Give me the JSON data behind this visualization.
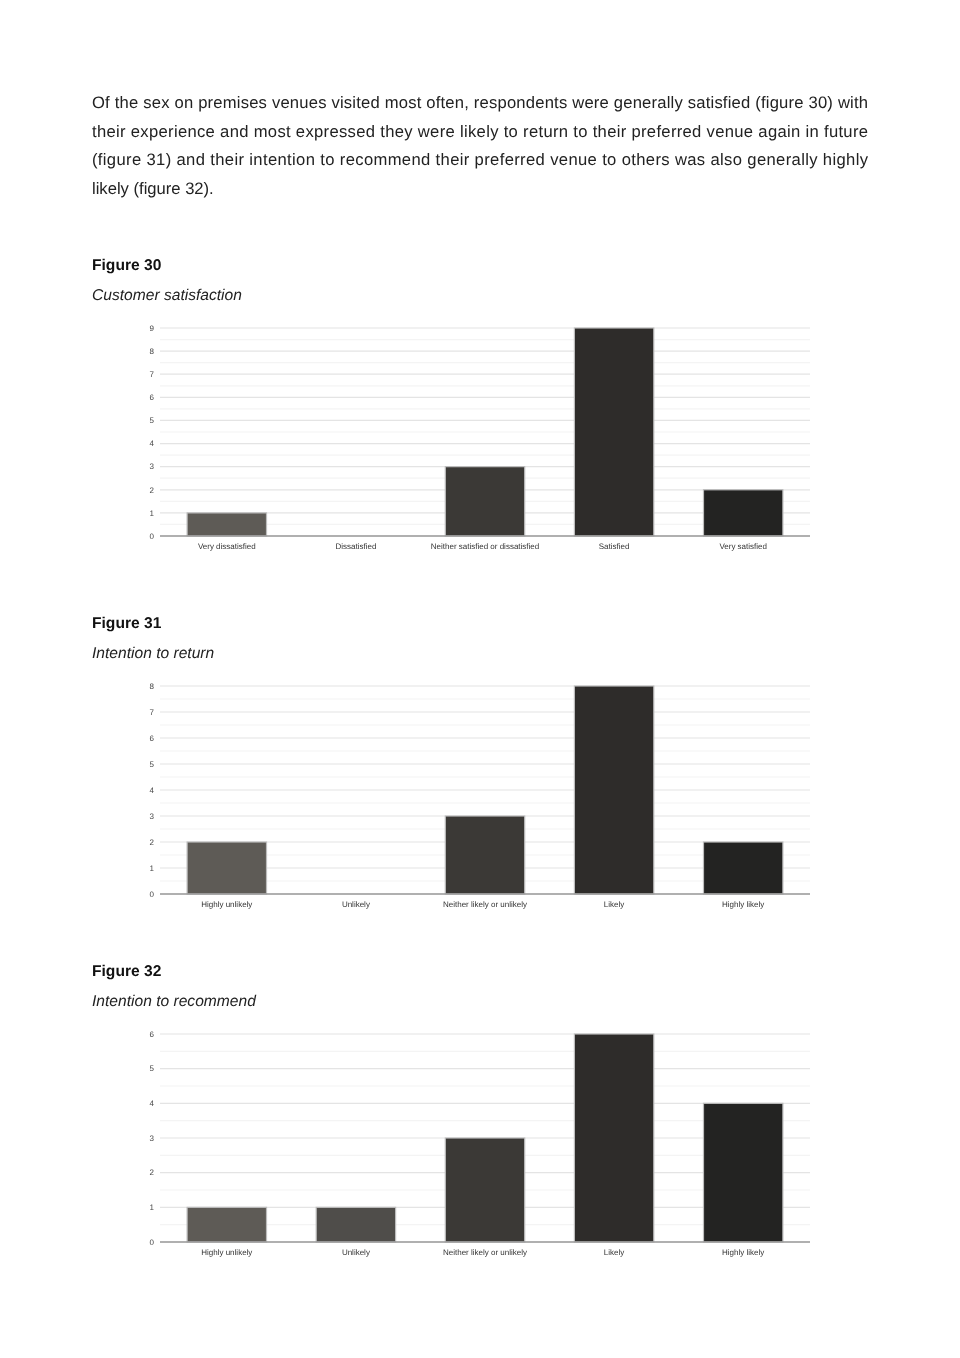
{
  "chart_data": [
    {
      "type": "bar",
      "title": "Figure 30",
      "subtitle": "Customer satisfaction",
      "annotations": [
        "Of the sex on premises venues visited most often, respondents were generally satisfied (figure 30) with their experience and most expressed they were likely to return to their preferred venue again in future (figure 31) and their intention to recommend their preferred venue to others was also generally highly likely (figure 32)."
      ],
      "categories": [
        "Very dissatisfied",
        "Dissatisfied",
        "Neither satisfied or dissatisfied",
        "Satisfied",
        "Very satisfied"
      ],
      "values": [
        1,
        0,
        3,
        9,
        2
      ],
      "colors": [
        "#5e5b56",
        "#4f4d4a",
        "#3b3936",
        "#2e2c2a",
        "#232322"
      ],
      "ylim": [
        0,
        9
      ],
      "yticks": [
        0,
        {
          "value": 0.5,
          "label": null
        },
        1,
        {
          "value": 1.5,
          "label": null
        },
        2,
        {
          "value": 2.5,
          "label": null
        },
        3,
        {
          "value": 3.5,
          "label": null
        },
        4,
        {
          "value": 4.5,
          "label": null
        },
        5,
        {
          "value": 5.5,
          "label": null
        },
        6,
        {
          "value": 6.5,
          "label": null
        },
        7,
        {
          "value": 7.5,
          "label": null
        },
        8,
        {
          "value": 8.5,
          "label": null
        },
        9
      ],
      "grid": "y"
    },
    {
      "type": "bar",
      "title": "Figure 31",
      "subtitle": "Intention to return",
      "categories": [
        "Highly unlikely",
        "Unlikely",
        "Neither likely or unlikely",
        "Likely",
        "Highly likely"
      ],
      "values": [
        2,
        0,
        3,
        8,
        2
      ],
      "colors": [
        "#5e5b56",
        "#4f4d4a",
        "#3b3936",
        "#2e2c2a",
        "#232322"
      ],
      "ylim": [
        0,
        8
      ],
      "yticks": [
        0,
        {
          "value": 0.5,
          "label": null
        },
        1,
        {
          "value": 1.5,
          "label": null
        },
        2,
        {
          "value": 2.5,
          "label": null
        },
        3,
        {
          "value": 3.5,
          "label": null
        },
        4,
        {
          "value": 4.5,
          "label": null
        },
        5,
        {
          "value": 5.5,
          "label": null
        },
        6,
        {
          "value": 6.5,
          "label": null
        },
        7,
        {
          "value": 7.5,
          "label": null
        },
        8
      ],
      "grid": "y"
    },
    {
      "type": "bar",
      "title": "Figure 32",
      "subtitle": "Intention to recommend",
      "categories": [
        "Highly unlikely",
        "Unlikely",
        "Neither likely or unlikely",
        "Likely",
        "Highly likely"
      ],
      "values": [
        1,
        1,
        3,
        6,
        4
      ],
      "colors": [
        "#5e5b56",
        "#4f4d4a",
        "#3b3936",
        "#2e2c2a",
        "#232322"
      ],
      "ylim": [
        0,
        6
      ],
      "yticks": [
        0,
        {
          "value": 0.5,
          "label": null
        },
        1,
        {
          "value": 1.5,
          "label": null
        },
        2,
        {
          "value": 2.5,
          "label": null
        },
        3,
        {
          "value": 3.5,
          "label": null
        },
        4,
        {
          "value": 4.5,
          "label": null
        },
        5,
        {
          "value": 5.5,
          "label": null
        },
        6
      ],
      "grid": "y"
    }
  ]
}
